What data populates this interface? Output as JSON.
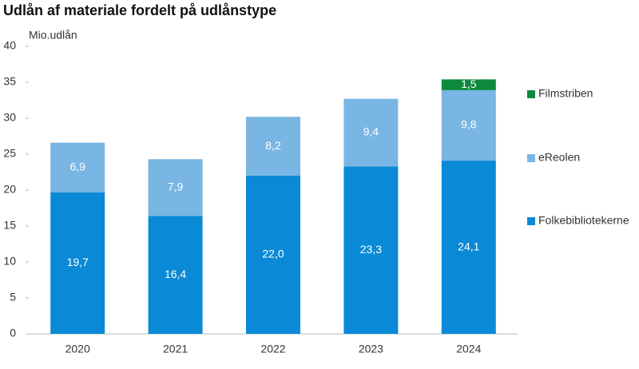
{
  "chart_data": {
    "type": "stacked_bar",
    "title": "Udlån af materiale fordelt på udlånstype",
    "y_label": "Mio.udlån",
    "categories": [
      "2020",
      "2021",
      "2022",
      "2023",
      "2024"
    ],
    "series": [
      {
        "name": "Folkebibliotekerne",
        "color": "#0a8ad6",
        "values": [
          19.7,
          16.4,
          22.0,
          23.3,
          24.1
        ],
        "value_labels": [
          "19,7",
          "16,4",
          "22,0",
          "23,3",
          "24,1"
        ]
      },
      {
        "name": "eReolen",
        "color": "#79b6e4",
        "values": [
          6.9,
          7.9,
          8.2,
          9.4,
          9.8
        ],
        "value_labels": [
          "6,9",
          "7,9",
          "8,2",
          "9,4",
          "9,8"
        ]
      },
      {
        "name": "Filmstriben",
        "color": "#0e8a3e",
        "values": [
          null,
          null,
          null,
          null,
          1.5
        ],
        "value_labels": [
          null,
          null,
          null,
          null,
          "1,5"
        ]
      }
    ],
    "ylim": [
      0,
      40
    ],
    "yticks": [
      0,
      5,
      10,
      15,
      20,
      25,
      30,
      35,
      40
    ],
    "grid": false,
    "legend": "right"
  }
}
